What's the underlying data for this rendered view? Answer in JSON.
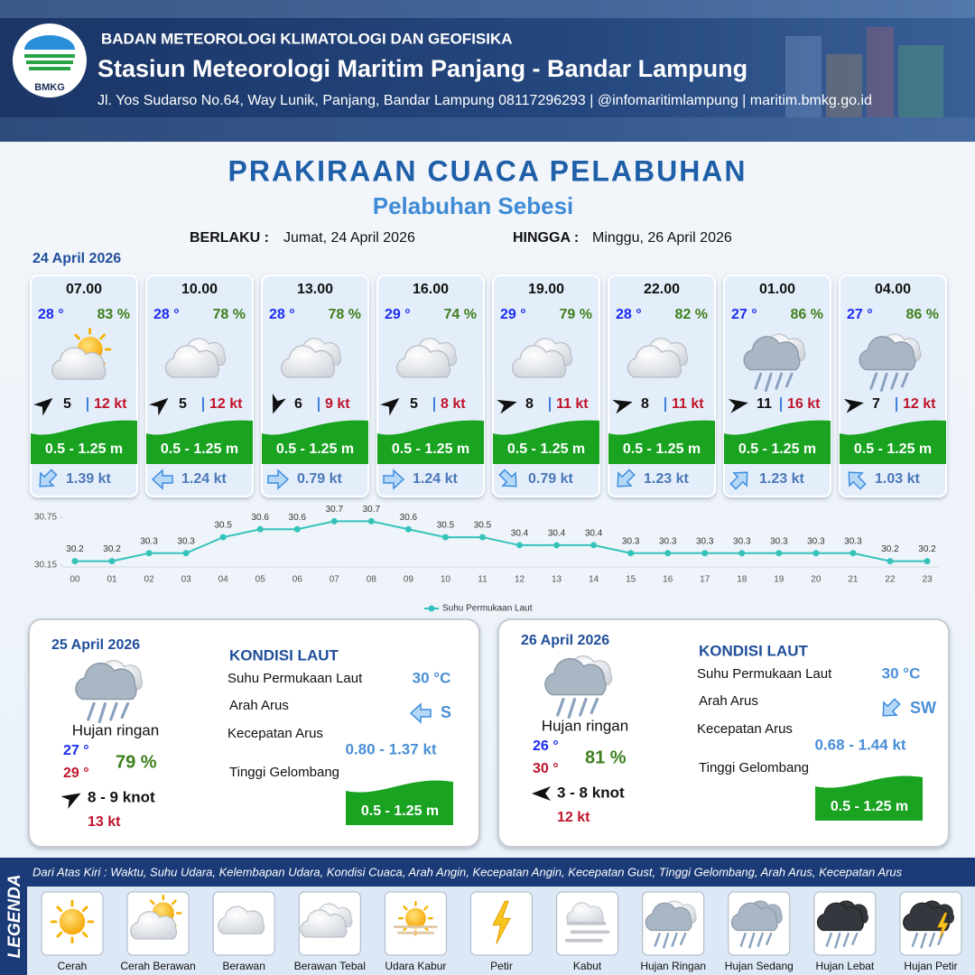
{
  "header": {
    "logo": "BMKG",
    "org": "BADAN METEOROLOGI KLIMATOLOGI DAN GEOFISIKA",
    "station": "Stasiun Meteorologi Maritim Panjang - Bandar Lampung",
    "address": "Jl. Yos Sudarso No.64, Way Lunik, Panjang, Bandar Lampung 08117296293 | @infomaritimlampung | maritim.bmkg.go.id"
  },
  "title": "PRAKIRAAN CUACA PELABUHAN",
  "subtitle": "Pelabuhan Sebesi",
  "validity": {
    "from_label": "BERLAKU :",
    "from": "Jumat, 24 April 2026",
    "to_label": "HINGGA :",
    "to": "Minggu, 26 April 2026"
  },
  "day1": {
    "date": "24 April 2026",
    "slots": [
      {
        "time": "07.00",
        "temp": "28 °",
        "humidity": "83 %",
        "wind": "5",
        "gust": "12 kt",
        "wave": "0.5 - 1.25 m",
        "current": "1.39 kt"
      },
      {
        "time": "10.00",
        "temp": "28 °",
        "humidity": "78 %",
        "wind": "5",
        "gust": "12 kt",
        "wave": "0.5 - 1.25 m",
        "current": "1.24 kt"
      },
      {
        "time": "13.00",
        "temp": "28 °",
        "humidity": "78 %",
        "wind": "6",
        "gust": "9 kt",
        "wave": "0.5 - 1.25 m",
        "current": "0.79 kt"
      },
      {
        "time": "16.00",
        "temp": "29 °",
        "humidity": "74 %",
        "wind": "5",
        "gust": "8 kt",
        "wave": "0.5 - 1.25 m",
        "current": "1.24 kt"
      },
      {
        "time": "19.00",
        "temp": "29 °",
        "humidity": "79 %",
        "wind": "8",
        "gust": "11 kt",
        "wave": "0.5 - 1.25 m",
        "current": "0.79 kt"
      },
      {
        "time": "22.00",
        "temp": "28 °",
        "humidity": "82 %",
        "wind": "8",
        "gust": "11 kt",
        "wave": "0.5 - 1.25 m",
        "current": "1.23 kt"
      },
      {
        "time": "01.00",
        "temp": "27 °",
        "humidity": "86 %",
        "wind": "11",
        "gust": "16 kt",
        "wave": "0.5 - 1.25 m",
        "current": "1.23 kt"
      },
      {
        "time": "04.00",
        "temp": "27 °",
        "humidity": "86 %",
        "wind": "7",
        "gust": "12 kt",
        "wave": "0.5 - 1.25 m",
        "current": "1.03 kt"
      }
    ]
  },
  "chart_data": {
    "type": "line",
    "categories": [
      "00",
      "01",
      "02",
      "03",
      "04",
      "05",
      "06",
      "07",
      "08",
      "09",
      "10",
      "11",
      "12",
      "13",
      "14",
      "15",
      "16",
      "17",
      "18",
      "19",
      "20",
      "21",
      "22",
      "23"
    ],
    "series": [
      {
        "name": "Suhu Permukaan Laut",
        "color": "#34c3bb",
        "values": [
          30.2,
          30.2,
          30.3,
          30.3,
          30.5,
          30.6,
          30.6,
          30.7,
          30.7,
          30.6,
          30.5,
          30.5,
          30.4,
          30.4,
          30.4,
          30.3,
          30.3,
          30.3,
          30.3,
          30.3,
          30.3,
          30.3,
          30.2,
          30.2
        ]
      }
    ],
    "ylim": [
      30.15,
      30.75
    ],
    "yticks": [
      30.75,
      30.15
    ]
  },
  "days": [
    {
      "date": "25 April 2026",
      "condition": "Hujan ringan",
      "tmin": "27 °",
      "tmax": "29 °",
      "humidity": "79 %",
      "wind": "8 - 9 knot",
      "gust": "13 kt",
      "sea_title": "KONDISI LAUT",
      "sst_label": "Suhu Permukaan Laut",
      "sst": "30 °C",
      "dir_label": "Arah Arus",
      "dir": "S",
      "speed_label": "Kecepatan Arus",
      "speed": "0.80 - 1.37 kt",
      "wave_label": "Tinggi Gelombang",
      "wave": "0.5 - 1.25 m"
    },
    {
      "date": "26 April 2026",
      "condition": "Hujan ringan",
      "tmin": "26 °",
      "tmax": "30 °",
      "humidity": "81 %",
      "wind": "3 - 8 knot",
      "gust": "12 kt",
      "sea_title": "KONDISI LAUT",
      "sst_label": "Suhu Permukaan Laut",
      "sst": "30 °C",
      "dir_label": "Arah Arus",
      "dir": "SW",
      "speed_label": "Kecepatan Arus",
      "speed": "0.68 - 1.44 kt",
      "wave_label": "Tinggi Gelombang",
      "wave": "0.5 - 1.25 m"
    }
  ],
  "legend": {
    "title": "LEGENDA",
    "description": "Dari Atas Kiri : Waktu, Suhu Udara, Kelembapan Udara, Kondisi Cuaca, Arah Angin, Kecepatan Angin, Kecepatan Gust, Tinggi Gelombang, Arah Arus, Kecepatan Arus",
    "items": [
      "Cerah",
      "Cerah Berawan",
      "Berawan",
      "Berawan Tebal",
      "Udara Kabur",
      "Petir",
      "Kabut",
      "Hujan Ringan",
      "Hujan Sedang",
      "Hujan Lebat",
      "Hujan Petir"
    ]
  }
}
